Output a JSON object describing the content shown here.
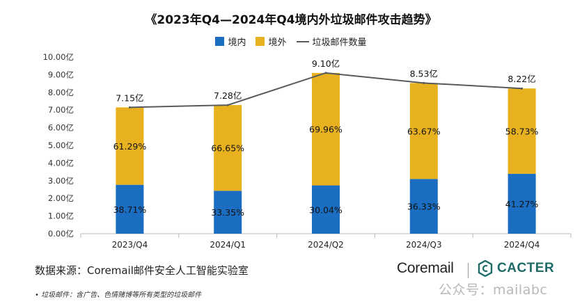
{
  "chart_data": {
    "type": "bar",
    "subtype": "stacked-bar-with-line",
    "title": "《2023年Q4—2024年Q4境内外垃圾邮件攻击趋势》",
    "categories": [
      "2023/Q4",
      "2024/Q1",
      "2024/Q2",
      "2024/Q3",
      "2024/Q4"
    ],
    "series": [
      {
        "name": "境内",
        "type": "bar",
        "color": "#1a6dc0",
        "values": [
          2.768,
          2.428,
          2.734,
          3.099,
          3.392
        ],
        "labels": [
          "38.71%",
          "33.35%",
          "30.04%",
          "36.33%",
          "41.27%"
        ]
      },
      {
        "name": "境外",
        "type": "bar",
        "color": "#e8b11f",
        "values": [
          4.382,
          4.852,
          6.366,
          5.431,
          4.828
        ],
        "labels": [
          "61.29%",
          "66.65%",
          "69.96%",
          "63.67%",
          "58.73%"
        ]
      },
      {
        "name": "垃圾邮件数量",
        "type": "line",
        "color": "#555a5e",
        "values": [
          7.15,
          7.28,
          9.1,
          8.53,
          8.22
        ],
        "labels": [
          "7.15亿",
          "7.28亿",
          "9.10亿",
          "8.53亿",
          "8.22亿"
        ]
      }
    ],
    "ylim": [
      0,
      10
    ],
    "yticks": [
      "0.00亿",
      "1.00亿",
      "2.00亿",
      "3.00亿",
      "4.00亿",
      "5.00亿",
      "6.00亿",
      "7.00亿",
      "8.00亿",
      "9.00亿",
      "10.00亿"
    ],
    "grid": false,
    "legend_position": "top"
  },
  "footer": {
    "source": "数据来源：Coremail邮件安全人工智能实验室",
    "brand_coremail": "Coremail",
    "brand_cacter": "CACTER",
    "footnote": "垃圾邮件：含广告、色情赌博等所有类型的垃圾邮件",
    "watermark": "公众号：mailabc"
  },
  "colors": {
    "domestic": "#1a6dc0",
    "foreign": "#e8b11f",
    "line": "#555a5e",
    "cacter": "#1f6b68"
  }
}
